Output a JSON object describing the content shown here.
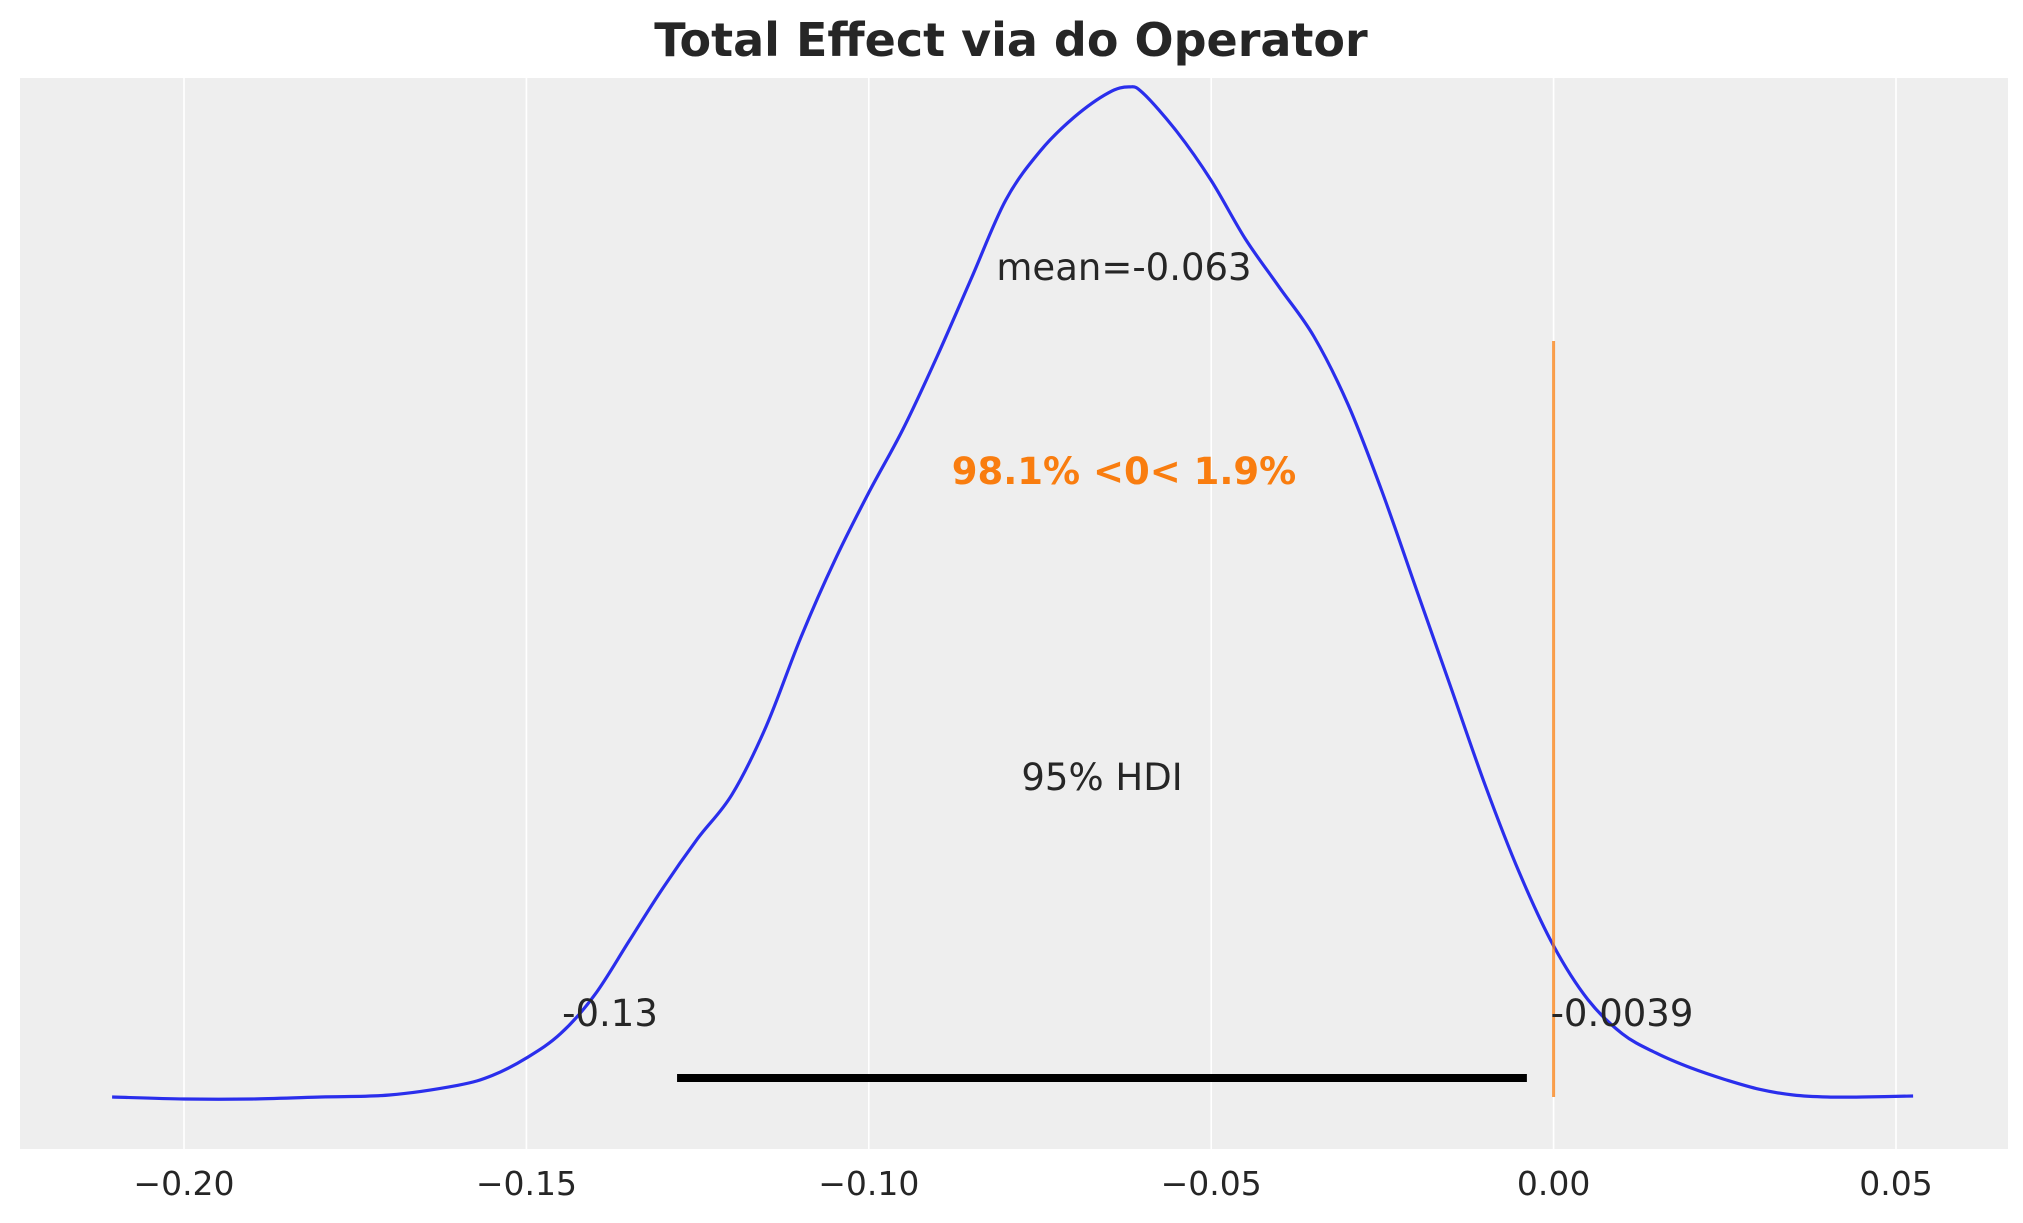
{
  "chart_data": {
    "type": "area",
    "title": "Total Effect via do Operator",
    "xlabel": "",
    "ylabel": "",
    "xlim": [
      -0.224,
      0.062
    ],
    "ylim": [
      0,
      1.05
    ],
    "grid": "vertical",
    "background": "#EEEEEE",
    "xticks": [
      -0.2,
      -0.15,
      -0.1,
      -0.05,
      0.0,
      0.05
    ],
    "xtick_labels": [
      "−0.20",
      "−0.15",
      "−0.10",
      "−0.05",
      "0.00",
      "0.05"
    ],
    "density": {
      "color": "#2A2EEC",
      "x": [
        -0.2105,
        -0.2,
        -0.19,
        -0.18,
        -0.17,
        -0.16,
        -0.155,
        -0.15,
        -0.145,
        -0.14,
        -0.135,
        -0.13,
        -0.125,
        -0.12,
        -0.115,
        -0.11,
        -0.105,
        -0.1,
        -0.095,
        -0.09,
        -0.085,
        -0.08,
        -0.075,
        -0.07,
        -0.065,
        -0.062,
        -0.06,
        -0.055,
        -0.05,
        -0.045,
        -0.04,
        -0.035,
        -0.03,
        -0.025,
        -0.02,
        -0.015,
        -0.01,
        -0.005,
        0.0,
        0.005,
        0.01,
        0.015,
        0.02,
        0.025,
        0.03,
        0.035,
        0.04,
        0.045,
        0.0525
      ],
      "y": [
        0.0,
        -0.002,
        -0.002,
        0.0,
        0.002,
        0.012,
        0.022,
        0.04,
        0.065,
        0.105,
        0.16,
        0.215,
        0.265,
        0.31,
        0.38,
        0.47,
        0.55,
        0.62,
        0.685,
        0.76,
        0.84,
        0.92,
        0.97,
        1.005,
        1.03,
        1.036,
        1.03,
        0.99,
        0.94,
        0.88,
        0.83,
        0.78,
        0.71,
        0.62,
        0.52,
        0.42,
        0.32,
        0.23,
        0.155,
        0.1,
        0.065,
        0.045,
        0.03,
        0.018,
        0.008,
        0.002,
        0.0,
        0.0,
        0.001
      ]
    },
    "hdi": {
      "label": "95% HDI",
      "low": -0.128,
      "high": -0.0039,
      "low_label": "-0.13",
      "high_label": "-0.0039",
      "color": "#000000"
    },
    "mean": {
      "label": "mean=-0.063"
    },
    "ref_val": {
      "value": 0.0,
      "text": "98.1% <0< 1.9%",
      "color": "#F97D0F"
    }
  }
}
